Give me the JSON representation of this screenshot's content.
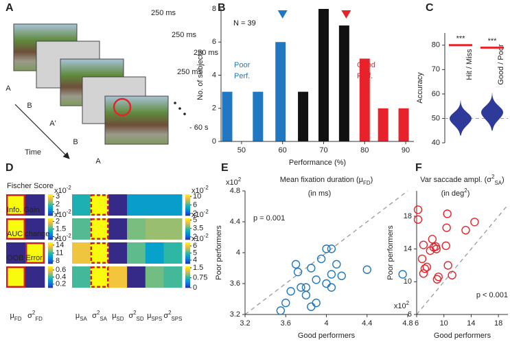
{
  "panel_labels": [
    "A",
    "B",
    "C",
    "D",
    "E",
    "F"
  ],
  "panel_a": {
    "durations": [
      "250 ms",
      "250 ms",
      "250 ms",
      "250 ms"
    ],
    "frames": [
      "A",
      "B",
      "A'",
      "B",
      "A"
    ],
    "time_label": "Time",
    "end_label": "- 60 s"
  },
  "chart_data": [
    {
      "type": "bar",
      "x": [
        46.5,
        54,
        59.5,
        65,
        70,
        75,
        80,
        84.5,
        89.5
      ],
      "values": [
        3,
        3,
        6,
        3,
        8,
        7,
        5,
        2,
        2
      ],
      "colors": [
        "#1f78c1",
        "#1f78c1",
        "#1f78c1",
        "#111111",
        "#111111",
        "#111111",
        "#e8222a",
        "#e8222a",
        "#e8222a"
      ],
      "xlim": [
        45,
        92
      ],
      "xticks": [
        50,
        60,
        70,
        80,
        90
      ],
      "ylim": [
        0,
        8
      ],
      "yticks": [
        0,
        2,
        4,
        6,
        8
      ],
      "xlabel": "Performance (%)",
      "ylabel": "No. of subjects",
      "annotations": [
        {
          "lines": [
            "N = 39"
          ],
          "color": "#111111"
        },
        {
          "lines": [
            "Poor",
            "Perf."
          ],
          "color": "#1f78c1"
        },
        {
          "lines": [
            "Good",
            "Perf."
          ],
          "color": "#e8222a"
        }
      ],
      "markers": [
        {
          "x": 60,
          "color": "#1f78c1"
        },
        {
          "x": 75.5,
          "color": "#e8222a"
        }
      ]
    },
    {
      "type": "violin",
      "categories": [
        "Hit / Miss",
        "Good / Poor"
      ],
      "medians": [
        50,
        52.5
      ],
      "ranges": [
        [
          43,
          57.5
        ],
        [
          45,
          60.5
        ]
      ],
      "color": "#2e3a9a",
      "ylim": [
        40,
        85
      ],
      "yticks": [
        40,
        50,
        60,
        70,
        80
      ],
      "ylabel": "Accuracy",
      "reference": 50,
      "significance": [
        80,
        79
      ],
      "significance_labels": [
        "***",
        "***"
      ],
      "significance_color": "#e8222a"
    },
    {
      "type": "scatter",
      "title": [
        {
          "text": "Mean fixation duration (μ"
        },
        {
          "text": "FD",
          "shift": "sub"
        },
        {
          "text": ")"
        }
      ],
      "subtitle": [
        {
          "text": "(in ms)"
        }
      ],
      "x": [
        3.7,
        3.72,
        3.65,
        3.75,
        3.8,
        3.6,
        3.55,
        3.85,
        3.9,
        3.95,
        4.0,
        4.05,
        4.1,
        4.05,
        4.15,
        4.0,
        4.05,
        3.9,
        3.85,
        4.4,
        4.75,
        3.8
      ],
      "values": [
        3.85,
        3.75,
        3.5,
        3.55,
        3.45,
        3.35,
        3.25,
        3.8,
        3.65,
        3.92,
        4.05,
        4.05,
        3.85,
        3.72,
        3.7,
        3.6,
        3.55,
        3.35,
        3.3,
        3.78,
        3.72,
        3.55
      ],
      "color": "#1f78c1",
      "xlim": [
        3.2,
        4.8
      ],
      "ylim": [
        3.2,
        4.8
      ],
      "xticks": [
        3.2,
        3.6,
        4,
        4.4,
        4.8
      ],
      "yticks": [
        3.2,
        3.6,
        4,
        4.4,
        4.8
      ],
      "scale_label": [
        {
          "text": "x10"
        },
        {
          "text": "2",
          "shift": "sup"
        }
      ],
      "xlabel": "Good performers",
      "ylabel": "Poor performers",
      "annotation": "p = 0.001",
      "annotation_corner": "upper left"
    },
    {
      "type": "scatter",
      "title": [
        {
          "text": "Var saccade ampl. (σ"
        },
        {
          "text": "2",
          "shift": "sup"
        },
        {
          "text": "SA",
          "shift": "sub"
        },
        {
          "text": ")"
        }
      ],
      "subtitle": [
        {
          "text": "(in deg"
        },
        {
          "text": "2",
          "shift": "sup"
        },
        {
          "text": ")"
        }
      ],
      "x": [
        6.2,
        6.2,
        7,
        6.8,
        7.2,
        7,
        7.5,
        8,
        8.3,
        8.5,
        8.9,
        8.8,
        9.2,
        9,
        10.5,
        10.4,
        10.6,
        11.2,
        13.2,
        14.5,
        10.3
      ],
      "values": [
        18.8,
        17.6,
        14.5,
        12.8,
        11.6,
        11,
        11.8,
        13.8,
        15.2,
        14.2,
        14,
        14.3,
        10.6,
        10.3,
        18.3,
        16.6,
        12,
        10.8,
        16.3,
        17.3,
        14.4
      ],
      "color": "#e8222a",
      "xlim": [
        6,
        19.4
      ],
      "ylim": [
        6,
        21.1
      ],
      "xticks": [
        6,
        10,
        14,
        18
      ],
      "yticks": [
        6,
        10,
        14,
        18
      ],
      "xlabel": "Good performers",
      "ylabel": "Poor performers",
      "annotation": "p < 0.001",
      "annotation_corner": "lower right"
    }
  ],
  "panel_d": {
    "colormap": [
      "#352a87",
      "#0f5cdd",
      "#1481d6",
      "#06a4ca",
      "#2eb7a4",
      "#87bf77",
      "#d1bb59",
      "#fec832",
      "#f9fb0e"
    ],
    "highlight_color": "#c8202a",
    "groups": [
      {
        "columns": [
          [
            {
              "text": "μ"
            },
            {
              "text": "FD",
              "shift": "sub"
            }
          ],
          [
            {
              "text": "σ"
            },
            {
              "text": "2",
              "shift": "sup"
            },
            {
              "text": "FD",
              "shift": "sub"
            }
          ]
        ],
        "highlight_dash": false
      },
      {
        "columns": [
          [
            {
              "text": "μ"
            },
            {
              "text": "SA",
              "shift": "sub"
            }
          ],
          [
            {
              "text": "σ"
            },
            {
              "text": "2",
              "shift": "sup"
            },
            {
              "text": "SA",
              "shift": "sub"
            }
          ],
          [
            {
              "text": "μ"
            },
            {
              "text": "SD",
              "shift": "sub"
            }
          ],
          [
            {
              "text": "σ"
            },
            {
              "text": "2",
              "shift": "sup"
            },
            {
              "text": "SD",
              "shift": "sub"
            }
          ],
          [
            {
              "text": "μ"
            },
            {
              "text": "SPS",
              "shift": "sub"
            }
          ],
          [
            {
              "text": "σ"
            },
            {
              "text": "2",
              "shift": "sup"
            },
            {
              "text": "SPS",
              "shift": "sub"
            }
          ]
        ],
        "highlight_dash": true
      }
    ],
    "rows": [
      {
        "label": "Fischer Score",
        "groups": [
          {
            "values": [
              3.3,
              0.5
            ],
            "clim": [
              0.5,
              3.3
            ],
            "ticks": [
              1,
              2,
              3
            ],
            "exponent": [
              {
                "text": "x10"
              },
              {
                "text": "-2",
                "shift": "sup"
              }
            ],
            "highlight": 0
          },
          {
            "values": [
              5.5,
              11,
              1,
              4.5,
              4.5,
              4.5
            ],
            "clim": [
              1,
              11
            ],
            "ticks": [
              2,
              6,
              10
            ],
            "exponent": [
              {
                "text": "x10"
              },
              {
                "text": "-2",
                "shift": "sup"
              }
            ],
            "highlight": 1
          }
        ]
      },
      {
        "label": "Info. Gain",
        "groups": [
          {
            "values": [
              2.2,
              0.8
            ],
            "clim": [
              0.8,
              2.2
            ],
            "ticks": [
              1,
              1.5,
              2
            ],
            "exponent": [
              {
                "text": "x10"
              },
              {
                "text": "-2",
                "shift": "sup"
              }
            ],
            "highlight": 0
          },
          {
            "values": [
              3.6,
              5.3,
              1.5,
              3.8,
              4.0,
              4.0
            ],
            "clim": [
              1.5,
              5.3
            ],
            "ticks": [
              2,
              3.5,
              5
            ],
            "exponent": [
              {
                "text": "x10"
              },
              {
                "text": "-2",
                "shift": "sup"
              }
            ],
            "highlight": 1
          }
        ]
      },
      {
        "label": "AUC change",
        "groups": [
          {
            "values": [
              7,
              15
            ],
            "clim": [
              7,
              15
            ],
            "ticks": [
              8,
              11,
              14
            ],
            "exponent": [
              {
                "text": "x10"
              },
              {
                "text": "-2",
                "shift": "sup"
              }
            ],
            "highlight": 1
          },
          {
            "values": [
              6.0,
              6.5,
              3.5,
              5.2,
              4.6,
              5.0
            ],
            "clim": [
              3.5,
              6.5
            ],
            "ticks": [
              4,
              5,
              6
            ],
            "exponent": [
              {
                "text": "x10"
              },
              {
                "text": "-2",
                "shift": "sup"
              }
            ],
            "highlight": 1
          }
        ]
      },
      {
        "label": "OOB Error",
        "groups": [
          {
            "values": [
              0.7,
              0.1
            ],
            "clim": [
              0.1,
              0.7
            ],
            "ticks": [
              0.2,
              0.4,
              0.6
            ],
            "highlight": 0
          },
          {
            "values": [
              0.85,
              1.6,
              1.35,
              0,
              0.95,
              0.85
            ],
            "clim": [
              0,
              1.6
            ],
            "ticks": [
              0,
              0.75,
              1.5
            ],
            "highlight": 1
          }
        ]
      }
    ]
  }
}
